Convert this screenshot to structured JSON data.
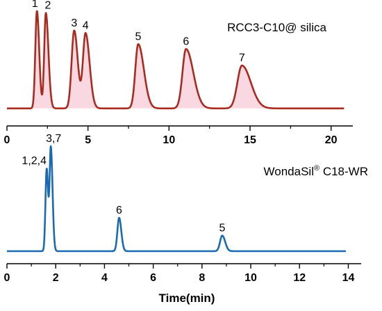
{
  "chart_data": [
    {
      "type": "line",
      "panel_label": "RCC3-C10@ silica",
      "xlim": [
        0,
        21
      ],
      "x_ticks": [
        0,
        5,
        10,
        15,
        20
      ],
      "baseline": 0.03,
      "peaks": [
        {
          "label": "1",
          "x": 1.85,
          "height": 1.0,
          "width_left": 0.1,
          "width_right": 0.14
        },
        {
          "label": "2",
          "x": 2.4,
          "height": 0.98,
          "width_left": 0.1,
          "width_right": 0.16
        },
        {
          "label": "3",
          "x": 4.15,
          "height": 0.8,
          "width_left": 0.16,
          "width_right": 0.22
        },
        {
          "label": "4",
          "x": 4.85,
          "height": 0.77,
          "width_left": 0.16,
          "width_right": 0.25
        },
        {
          "label": "5",
          "x": 8.1,
          "height": 0.66,
          "width_left": 0.18,
          "width_right": 0.35
        },
        {
          "label": "6",
          "x": 11.05,
          "height": 0.61,
          "width_left": 0.22,
          "width_right": 0.45
        },
        {
          "label": "7",
          "x": 14.5,
          "height": 0.44,
          "width_left": 0.28,
          "width_right": 0.55
        }
      ],
      "x_end": 20.8,
      "color": "#a92a1e",
      "fill_color": "#f6b8c8"
    },
    {
      "type": "line",
      "panel_label": "WondaSil",
      "panel_label_sup": "®",
      "panel_label_suffix": " C18-WR",
      "xlim": [
        0,
        14.3
      ],
      "x_ticks": [
        0,
        2,
        4,
        6,
        8,
        10,
        12,
        14
      ],
      "xlabel": "Time(min)",
      "baseline": 0.0,
      "peaks": [
        {
          "label": "1,2,4",
          "x": 1.63,
          "height": 0.74,
          "width_left": 0.05,
          "width_right": 0.06
        },
        {
          "label": "3,7",
          "x": 1.8,
          "height": 0.93,
          "width_left": 0.05,
          "width_right": 0.07
        },
        {
          "label": "6",
          "x": 4.6,
          "height": 0.3,
          "width_left": 0.07,
          "width_right": 0.09
        },
        {
          "label": "5",
          "x": 8.83,
          "height": 0.14,
          "width_left": 0.09,
          "width_right": 0.12
        }
      ],
      "x_end": 13.9,
      "color": "#1a6ab3"
    }
  ]
}
